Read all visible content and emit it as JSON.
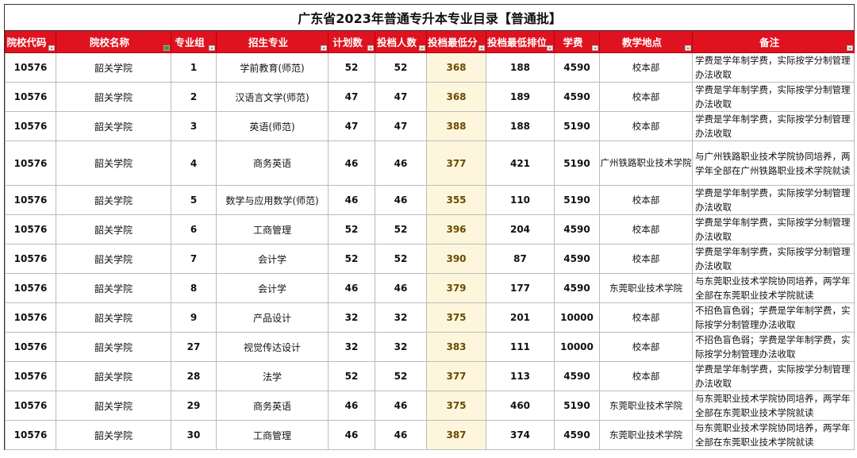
{
  "title": "广东省2023年普通专升本专业目录【普通批】",
  "columns": [
    "院校代码",
    "院校名称",
    "专业组",
    "招生专业",
    "计划数",
    "投档人数",
    "投档最低分",
    "投档最低排位",
    "学费",
    "教学地点",
    "备注"
  ],
  "colors": {
    "header_bg": "#e0121f",
    "header_text": "#ffffff",
    "score_bg": "#fdf6dd"
  },
  "rows": [
    [
      "10576",
      "韶关学院",
      "1",
      "学前教育(师范)",
      "52",
      "52",
      "368",
      "188",
      "4590",
      "校本部",
      "学费是学年制学费，实际按学分制管理办法收取"
    ],
    [
      "10576",
      "韶关学院",
      "2",
      "汉语言文学(师范)",
      "47",
      "47",
      "368",
      "189",
      "4590",
      "校本部",
      "学费是学年制学费，实际按学分制管理办法收取"
    ],
    [
      "10576",
      "韶关学院",
      "3",
      "英语(师范)",
      "47",
      "47",
      "388",
      "188",
      "5190",
      "校本部",
      "学费是学年制学费，实际按学分制管理办法收取"
    ],
    [
      "10576",
      "韶关学院",
      "4",
      "商务英语",
      "46",
      "46",
      "377",
      "421",
      "5190",
      "广州铁路职业技术学院",
      "与广州铁路职业技术学院协同培养，两学年全部在广州铁路职业技术学院就读"
    ],
    [
      "10576",
      "韶关学院",
      "5",
      "数学与应用数学(师范)",
      "46",
      "46",
      "355",
      "110",
      "5190",
      "校本部",
      "学费是学年制学费，实际按学分制管理办法收取"
    ],
    [
      "10576",
      "韶关学院",
      "6",
      "工商管理",
      "52",
      "52",
      "396",
      "204",
      "4590",
      "校本部",
      "学费是学年制学费，实际按学分制管理办法收取"
    ],
    [
      "10576",
      "韶关学院",
      "7",
      "会计学",
      "52",
      "52",
      "390",
      "87",
      "4590",
      "校本部",
      "学费是学年制学费，实际按学分制管理办法收取"
    ],
    [
      "10576",
      "韶关学院",
      "8",
      "会计学",
      "46",
      "46",
      "379",
      "177",
      "4590",
      "东莞职业技术学院",
      "与东莞职业技术学院协同培养，两学年全部在东莞职业技术学院就读"
    ],
    [
      "10576",
      "韶关学院",
      "9",
      "产品设计",
      "32",
      "32",
      "375",
      "201",
      "10000",
      "校本部",
      "不招色盲色弱；学费是学年制学费，实际按学分制管理办法收取"
    ],
    [
      "10576",
      "韶关学院",
      "27",
      "视觉传达设计",
      "32",
      "32",
      "383",
      "111",
      "10000",
      "校本部",
      "不招色盲色弱；学费是学年制学费，实际按学分制管理办法收取"
    ],
    [
      "10576",
      "韶关学院",
      "28",
      "法学",
      "52",
      "52",
      "377",
      "113",
      "4590",
      "校本部",
      "学费是学年制学费，实际按学分制管理办法收取"
    ],
    [
      "10576",
      "韶关学院",
      "29",
      "商务英语",
      "46",
      "46",
      "375",
      "460",
      "5190",
      "东莞职业技术学院",
      "与东莞职业技术学院协同培养，两学年全部在东莞职业技术学院就读"
    ],
    [
      "10576",
      "韶关学院",
      "30",
      "工商管理",
      "46",
      "46",
      "387",
      "374",
      "4590",
      "东莞职业技术学院",
      "与东莞职业技术学院协同培养，两学年全部在东莞职业技术学院就读"
    ]
  ]
}
